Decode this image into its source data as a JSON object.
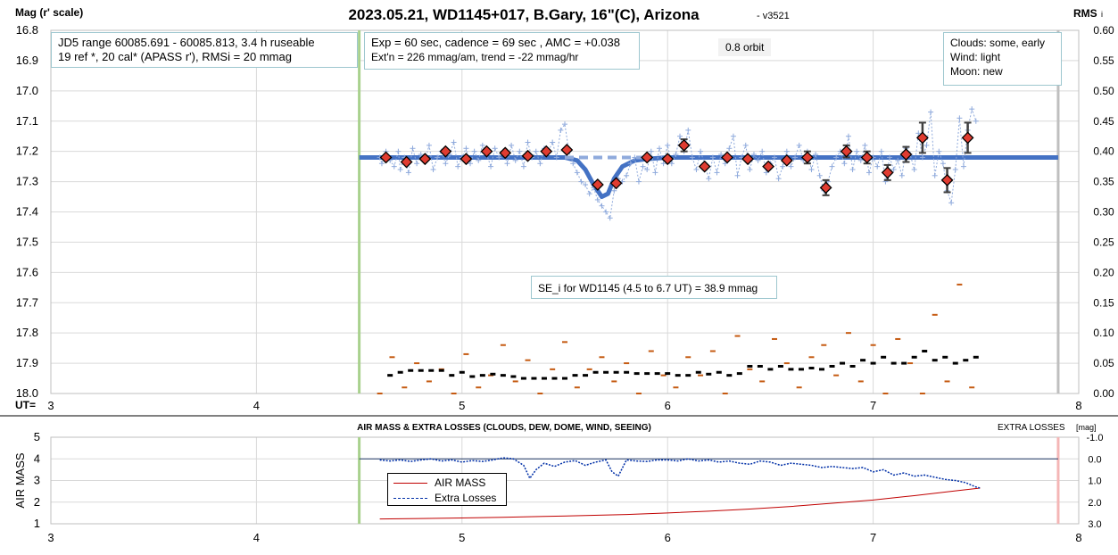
{
  "upper": {
    "title": "2023.05.21, WD1145+017, B.Gary, 16\"(C), Arizona",
    "version": "- v3521",
    "ylabel": "Mag (r' scale)",
    "y2label": "RMS",
    "y2label_suffix": "i",
    "xaxis_label": "UT=",
    "note_left": [
      "JD5 range 60085.691 - 60085.813, 3.4 h ruseable",
      "19 ref *, 20 cal*  (APASS r'), RMSi = 20 mmag"
    ],
    "note_mid": [
      "Exp = 60 sec, cadence = 69 sec , AMC = +0.038",
      "Ext'n = 226 mmag/am, trend = -22 mmag/hr"
    ],
    "orbit_label": "0.8 orbit",
    "conditions": [
      "Clouds: some, early",
      "Wind:    light",
      "Moon:   new"
    ],
    "se_note": "SE_i for WD1145 (4.5 to 6.7 UT) = 38.9 mmag"
  },
  "lower": {
    "title": "AIR MASS & EXTRA LOSSES (CLOUDS, DEW, DOME, WIND, SEEING)",
    "ylabel": "AIR MASS",
    "y2label": "EXTRA LOSSES",
    "y2label_suffix": "[mag]",
    "legend": [
      "AIR MASS",
      "Extra Losses"
    ]
  },
  "colors": {
    "grid": "#d9d9d9",
    "model": "#4472c4",
    "raw": "#8faadc",
    "binned_fill": "#e03c31",
    "rms_black": "#000000",
    "rms_orange": "#c55a11",
    "green_line": "#a9d18e",
    "gray_line": "#bfbfbf",
    "pink_line": "#f4b6b6",
    "airmass": "#c00000",
    "extra_losses": "#002fa7",
    "zero_line": "#1f3864"
  },
  "chart_data": [
    {
      "type": "scatter",
      "title": "2023.05.21, WD1145+017, B.Gary, 16\"(C), Arizona",
      "xlabel": "UT=",
      "ylabel": "Mag (r' scale)",
      "y2label": "RMS i",
      "xlim": [
        3,
        8
      ],
      "ylim": [
        16.8,
        18.0
      ],
      "y_inverted": true,
      "y2lim": [
        0.0,
        0.6
      ],
      "xticks": [
        "3",
        "4",
        "5",
        "6",
        "7",
        "8"
      ],
      "yticks": [
        "16.8",
        "16.9",
        "17.0",
        "17.1",
        "17.2",
        "17.3",
        "17.4",
        "17.5",
        "17.6",
        "17.7",
        "17.8",
        "17.9",
        "18.0"
      ],
      "y2ticks": [
        "0.60",
        "0.55",
        "0.50",
        "0.45",
        "0.40",
        "0.35",
        "0.30",
        "0.25",
        "0.20",
        "0.15",
        "0.10",
        "0.05",
        "0.00"
      ],
      "grid": true,
      "vertical_markers": [
        4.5,
        7.9
      ],
      "series": [
        {
          "kind": "model",
          "x": [
            4.5,
            5.5,
            5.56,
            5.6,
            5.64,
            5.68,
            5.71,
            5.74,
            5.78,
            5.84,
            5.9,
            6.0,
            7.9
          ],
          "y": [
            17.22,
            17.22,
            17.23,
            17.26,
            17.31,
            17.35,
            17.34,
            17.29,
            17.25,
            17.23,
            17.225,
            17.22,
            17.22
          ]
        },
        {
          "kind": "dashed-baseline",
          "x": [
            5.5,
            5.92
          ],
          "y": [
            17.22,
            17.22
          ]
        },
        {
          "kind": "raw",
          "x": [
            4.6,
            4.61,
            4.63,
            4.65,
            4.67,
            4.69,
            4.7,
            4.72,
            4.74,
            4.76,
            4.78,
            4.8,
            4.82,
            4.84,
            4.86,
            4.88,
            4.9,
            4.92,
            4.94,
            4.96,
            4.98,
            5.0,
            5.02,
            5.04,
            5.06,
            5.08,
            5.1,
            5.12,
            5.14,
            5.16,
            5.18,
            5.2,
            5.22,
            5.24,
            5.26,
            5.28,
            5.3,
            5.32,
            5.34,
            5.36,
            5.38,
            5.4,
            5.42,
            5.44,
            5.46,
            5.48,
            5.5,
            5.52,
            5.54,
            5.56,
            5.58,
            5.6,
            5.62,
            5.64,
            5.66,
            5.68,
            5.7,
            5.72,
            5.74,
            5.76,
            5.78,
            5.8,
            5.82,
            5.84,
            5.86,
            5.88,
            5.9,
            5.92,
            5.94,
            5.96,
            5.98,
            6.0,
            6.02,
            6.04,
            6.06,
            6.08,
            6.1,
            6.12,
            6.14,
            6.16,
            6.18,
            6.2,
            6.22,
            6.24,
            6.26,
            6.28,
            6.3,
            6.32,
            6.34,
            6.36,
            6.38,
            6.4,
            6.42,
            6.44,
            6.46,
            6.48,
            6.5,
            6.52,
            6.54,
            6.56,
            6.58,
            6.6,
            6.62,
            6.64,
            6.66,
            6.68,
            6.7,
            6.72,
            6.74,
            6.76,
            6.78,
            6.8,
            6.82,
            6.84,
            6.86,
            6.88,
            6.9,
            6.92,
            6.94,
            6.96,
            6.98,
            7.0,
            7.02,
            7.04,
            7.06,
            7.08,
            7.1,
            7.12,
            7.14,
            7.16,
            7.18,
            7.2,
            7.22,
            7.24,
            7.26,
            7.28,
            7.3,
            7.32,
            7.34,
            7.36,
            7.38,
            7.4,
            7.42,
            7.44,
            7.46,
            7.48,
            7.5
          ],
          "y": [
            17.22,
            17.24,
            17.2,
            17.23,
            17.25,
            17.2,
            17.26,
            17.22,
            17.27,
            17.19,
            17.24,
            17.21,
            17.23,
            17.18,
            17.26,
            17.22,
            17.2,
            17.24,
            17.21,
            17.17,
            17.25,
            17.22,
            17.19,
            17.24,
            17.2,
            17.23,
            17.18,
            17.21,
            17.25,
            17.19,
            17.22,
            17.2,
            17.24,
            17.18,
            17.23,
            17.2,
            17.25,
            17.17,
            17.22,
            17.2,
            17.24,
            17.19,
            17.2,
            17.17,
            17.22,
            17.13,
            17.11,
            17.2,
            17.24,
            17.27,
            17.3,
            17.31,
            17.34,
            17.32,
            17.36,
            17.38,
            17.4,
            17.42,
            17.33,
            17.29,
            17.3,
            17.28,
            17.24,
            17.22,
            17.3,
            17.25,
            17.26,
            17.2,
            17.27,
            17.19,
            17.24,
            17.18,
            17.24,
            17.21,
            17.15,
            17.2,
            17.13,
            17.22,
            17.26,
            17.2,
            17.24,
            17.29,
            17.22,
            17.27,
            17.21,
            17.24,
            17.19,
            17.15,
            17.28,
            17.22,
            17.18,
            17.26,
            17.21,
            17.23,
            17.2,
            17.27,
            17.24,
            17.22,
            17.29,
            17.25,
            17.2,
            17.25,
            17.22,
            17.18,
            17.23,
            17.2,
            17.26,
            17.21,
            17.28,
            17.33,
            17.3,
            17.25,
            17.22,
            17.2,
            17.24,
            17.15,
            17.26,
            17.2,
            17.23,
            17.18,
            17.27,
            17.22,
            17.25,
            17.2,
            17.3,
            17.22,
            17.26,
            17.23,
            17.28,
            17.19,
            17.21,
            17.26,
            17.14,
            17.22,
            17.18,
            17.07,
            17.28,
            17.2,
            17.24,
            17.33,
            17.37,
            17.26,
            17.09,
            17.25,
            17.13,
            17.06,
            17.1
          ]
        },
        {
          "kind": "binned",
          "x": [
            4.63,
            4.73,
            4.82,
            4.92,
            5.02,
            5.12,
            5.21,
            5.32,
            5.41,
            5.51,
            5.66,
            5.75,
            5.9,
            6.0,
            6.08,
            6.18,
            6.29,
            6.39,
            6.49,
            6.58,
            6.68,
            6.77,
            6.87,
            6.97,
            7.07,
            7.16,
            7.24,
            7.36,
            7.46
          ],
          "y": [
            17.22,
            17.235,
            17.225,
            17.2,
            17.225,
            17.2,
            17.205,
            17.215,
            17.2,
            17.195,
            17.31,
            17.305,
            17.22,
            17.225,
            17.18,
            17.25,
            17.22,
            17.225,
            17.25,
            17.23,
            17.22,
            17.32,
            17.2,
            17.22,
            17.27,
            17.21,
            17.155,
            17.295,
            17.155
          ],
          "err": [
            0.01,
            0.012,
            0.01,
            0.008,
            0.012,
            0.012,
            0.01,
            0.012,
            0.012,
            0.012,
            0.015,
            0.015,
            0.015,
            0.015,
            0.02,
            0.015,
            0.012,
            0.015,
            0.015,
            0.015,
            0.02,
            0.025,
            0.02,
            0.02,
            0.025,
            0.025,
            0.05,
            0.04,
            0.05
          ]
        },
        {
          "kind": "rms-black",
          "axis": "y2",
          "x": [
            4.65,
            4.7,
            4.75,
            4.8,
            4.85,
            4.9,
            4.95,
            5.0,
            5.05,
            5.1,
            5.15,
            5.2,
            5.25,
            5.3,
            5.35,
            5.4,
            5.45,
            5.5,
            5.55,
            5.6,
            5.65,
            5.7,
            5.75,
            5.8,
            5.85,
            5.9,
            5.95,
            6.0,
            6.05,
            6.1,
            6.15,
            6.2,
            6.25,
            6.3,
            6.35,
            6.4,
            6.45,
            6.5,
            6.55,
            6.6,
            6.65,
            6.7,
            6.75,
            6.8,
            6.85,
            6.9,
            6.95,
            7.0,
            7.05,
            7.1,
            7.15,
            7.2,
            7.25,
            7.3,
            7.35,
            7.4,
            7.45,
            7.5
          ],
          "y": [
            0.03,
            0.035,
            0.038,
            0.038,
            0.038,
            0.038,
            0.03,
            0.035,
            0.028,
            0.03,
            0.032,
            0.03,
            0.028,
            0.025,
            0.025,
            0.025,
            0.025,
            0.025,
            0.03,
            0.03,
            0.035,
            0.035,
            0.035,
            0.035,
            0.033,
            0.033,
            0.033,
            0.033,
            0.03,
            0.03,
            0.035,
            0.032,
            0.035,
            0.03,
            0.033,
            0.045,
            0.045,
            0.04,
            0.045,
            0.04,
            0.04,
            0.042,
            0.04,
            0.045,
            0.05,
            0.045,
            0.055,
            0.05,
            0.06,
            0.05,
            0.05,
            0.06,
            0.07,
            0.055,
            0.06,
            0.05,
            0.055,
            0.06
          ]
        },
        {
          "kind": "rms-orange",
          "axis": "y2",
          "x": [
            4.6,
            4.66,
            4.72,
            4.78,
            4.84,
            4.9,
            4.96,
            5.02,
            5.08,
            5.14,
            5.2,
            5.26,
            5.32,
            5.38,
            5.44,
            5.5,
            5.56,
            5.62,
            5.68,
            5.74,
            5.8,
            5.86,
            5.92,
            5.98,
            6.04,
            6.1,
            6.16,
            6.22,
            6.28,
            6.34,
            6.4,
            6.46,
            6.52,
            6.58,
            6.64,
            6.7,
            6.76,
            6.82,
            6.88,
            6.94,
            7.0,
            7.06,
            7.12,
            7.18,
            7.24,
            7.3,
            7.36,
            7.42,
            7.48
          ],
          "y": [
            0.0,
            0.06,
            0.01,
            0.05,
            0.02,
            0.04,
            0.0,
            0.065,
            0.01,
            0.03,
            0.08,
            0.02,
            0.055,
            0.0,
            0.04,
            0.085,
            0.01,
            0.04,
            0.06,
            0.02,
            0.05,
            0.0,
            0.07,
            0.03,
            0.01,
            0.06,
            0.03,
            0.07,
            0.0,
            0.095,
            0.04,
            0.02,
            0.09,
            0.05,
            0.01,
            0.06,
            0.08,
            0.03,
            0.1,
            0.02,
            0.08,
            0.0,
            0.09,
            0.05,
            0.0,
            0.13,
            0.02,
            0.18,
            0.01
          ]
        }
      ]
    },
    {
      "type": "line",
      "title": "AIR MASS & EXTRA LOSSES (CLOUDS, DEW, DOME, WIND, SEEING)",
      "ylabel": "AIR MASS",
      "y2label": "EXTRA LOSSES [mag]",
      "xlim": [
        3,
        8
      ],
      "ylim": [
        1,
        5
      ],
      "y2lim": [
        -1.0,
        3.0
      ],
      "y2_inverted": true,
      "xticks": [
        "3",
        "4",
        "5",
        "6",
        "7",
        "8"
      ],
      "yticks": [
        "1",
        "2",
        "3",
        "4",
        "5"
      ],
      "y2ticks": [
        "-1.0",
        "0.0",
        "1.0",
        "2.0",
        "3.0"
      ],
      "vertical_markers": [
        4.5,
        7.9
      ],
      "series": [
        {
          "name": "AIR MASS",
          "x": [
            4.6,
            4.8,
            5.0,
            5.2,
            5.4,
            5.6,
            5.8,
            6.0,
            6.2,
            6.4,
            6.6,
            6.8,
            7.0,
            7.2,
            7.4,
            7.52
          ],
          "y": [
            1.22,
            1.24,
            1.27,
            1.3,
            1.34,
            1.38,
            1.43,
            1.5,
            1.58,
            1.68,
            1.8,
            1.95,
            2.1,
            2.3,
            2.52,
            2.65
          ]
        },
        {
          "name": "Extra Losses",
          "axis": "y2",
          "x": [
            4.6,
            4.65,
            4.7,
            4.75,
            4.8,
            4.85,
            4.9,
            4.95,
            5.0,
            5.05,
            5.1,
            5.15,
            5.2,
            5.25,
            5.3,
            5.33,
            5.36,
            5.4,
            5.45,
            5.5,
            5.55,
            5.6,
            5.65,
            5.7,
            5.73,
            5.76,
            5.8,
            5.85,
            5.9,
            5.95,
            6.0,
            6.05,
            6.1,
            6.15,
            6.2,
            6.25,
            6.3,
            6.35,
            6.4,
            6.45,
            6.5,
            6.55,
            6.6,
            6.65,
            6.7,
            6.75,
            6.8,
            6.85,
            6.9,
            6.95,
            7.0,
            7.05,
            7.1,
            7.15,
            7.2,
            7.25,
            7.3,
            7.35,
            7.4,
            7.45,
            7.5,
            7.52
          ],
          "y": [
            0.05,
            0.1,
            0.05,
            0.12,
            0.05,
            0.0,
            0.1,
            0.05,
            0.15,
            0.08,
            0.12,
            0.05,
            -0.05,
            0.0,
            0.3,
            0.9,
            0.5,
            0.2,
            0.35,
            0.15,
            0.08,
            0.3,
            0.15,
            0.05,
            0.6,
            0.8,
            0.05,
            0.1,
            0.12,
            0.05,
            0.05,
            0.1,
            0.0,
            0.1,
            0.05,
            0.15,
            0.1,
            0.2,
            0.25,
            0.1,
            0.15,
            0.3,
            0.2,
            0.25,
            0.3,
            0.4,
            0.35,
            0.4,
            0.45,
            0.4,
            0.6,
            0.5,
            0.75,
            0.65,
            0.8,
            0.75,
            0.85,
            0.95,
            1.0,
            1.1,
            1.3,
            1.35
          ]
        }
      ]
    }
  ]
}
